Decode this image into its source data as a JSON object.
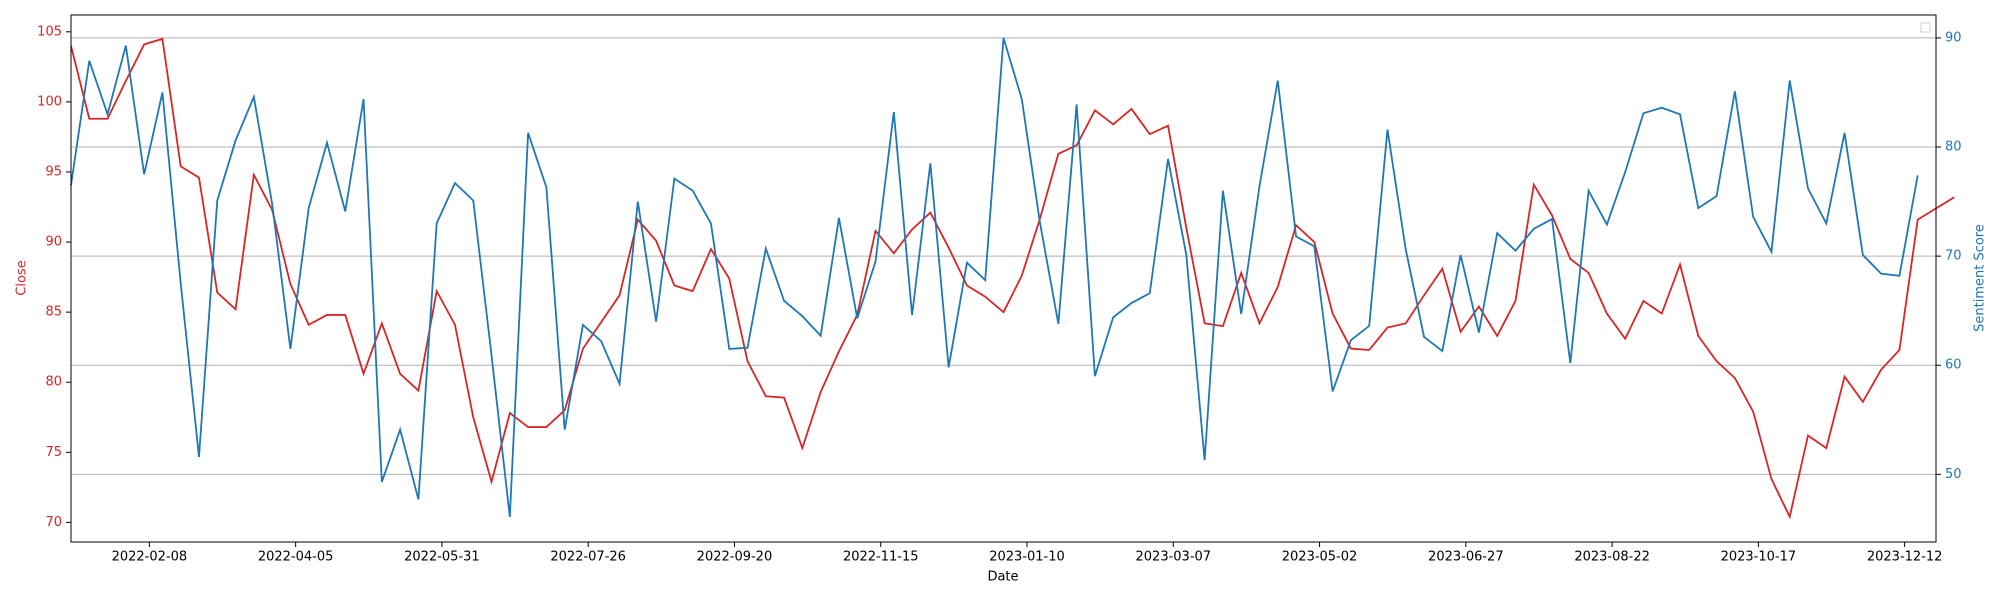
{
  "chart_data": {
    "type": "line",
    "x": [
      "2022-01-09",
      "2022-01-16",
      "2022-01-23",
      "2022-01-30",
      "2022-02-06",
      "2022-02-13",
      "2022-02-20",
      "2022-02-27",
      "2022-03-06",
      "2022-03-13",
      "2022-03-20",
      "2022-03-27",
      "2022-04-03",
      "2022-04-10",
      "2022-04-17",
      "2022-04-24",
      "2022-05-01",
      "2022-05-08",
      "2022-05-15",
      "2022-05-22",
      "2022-05-29",
      "2022-06-05",
      "2022-06-12",
      "2022-06-19",
      "2022-06-26",
      "2022-07-03",
      "2022-07-10",
      "2022-07-17",
      "2022-07-24",
      "2022-07-31",
      "2022-08-07",
      "2022-08-14",
      "2022-08-21",
      "2022-08-28",
      "2022-09-04",
      "2022-09-11",
      "2022-09-18",
      "2022-09-25",
      "2022-10-02",
      "2022-10-09",
      "2022-10-16",
      "2022-10-23",
      "2022-10-30",
      "2022-11-06",
      "2022-11-13",
      "2022-11-20",
      "2022-11-27",
      "2022-12-04",
      "2022-12-11",
      "2022-12-18",
      "2022-12-25",
      "2023-01-01",
      "2023-01-08",
      "2023-01-15",
      "2023-01-22",
      "2023-01-29",
      "2023-02-05",
      "2023-02-12",
      "2023-02-19",
      "2023-02-26",
      "2023-03-05",
      "2023-03-12",
      "2023-03-19",
      "2023-03-26",
      "2023-04-02",
      "2023-04-09",
      "2023-04-16",
      "2023-04-23",
      "2023-04-30",
      "2023-05-07",
      "2023-05-14",
      "2023-05-21",
      "2023-05-28",
      "2023-06-04",
      "2023-06-11",
      "2023-06-18",
      "2023-06-25",
      "2023-07-02",
      "2023-07-09",
      "2023-07-16",
      "2023-07-23",
      "2023-07-30",
      "2023-08-06",
      "2023-08-13",
      "2023-08-20",
      "2023-08-27",
      "2023-09-03",
      "2023-09-10",
      "2023-09-17",
      "2023-09-24",
      "2023-10-01",
      "2023-10-08",
      "2023-10-15",
      "2023-10-22",
      "2023-10-29",
      "2023-11-05",
      "2023-11-12",
      "2023-11-19",
      "2023-11-26",
      "2023-12-03",
      "2023-12-10",
      "2023-12-17",
      "2023-12-24",
      "2023-12-31"
    ],
    "series": [
      {
        "name": "Close",
        "color": "#d62728",
        "axis": "y",
        "values": [
          104.0,
          98.8,
          98.8,
          101.5,
          104.1,
          104.5,
          95.4,
          94.6,
          86.4,
          85.2,
          94.8,
          92.3,
          87.0,
          84.1,
          84.8,
          84.8,
          80.6,
          84.2,
          80.6,
          79.4,
          86.5,
          84.1,
          77.5,
          72.9,
          77.8,
          76.8,
          76.8,
          78.0,
          82.4,
          84.3,
          86.2,
          91.6,
          90.1,
          86.9,
          86.5,
          89.5,
          87.4,
          81.5,
          79.0,
          78.9,
          75.3,
          79.3,
          82.2,
          84.8,
          90.8,
          89.2,
          90.9,
          92.1,
          89.6,
          86.9,
          86.1,
          85.0,
          87.6,
          91.7,
          96.3,
          96.9,
          99.4,
          98.4,
          99.5,
          97.7,
          98.3,
          91.0,
          84.2,
          84.0,
          87.8,
          84.2,
          86.8,
          91.2,
          90.0,
          84.9,
          82.4,
          82.3,
          83.9,
          84.2,
          86.2,
          88.1,
          83.6,
          85.4,
          83.3,
          85.8,
          94.1,
          91.9,
          88.8,
          87.8,
          84.9,
          83.1,
          85.8,
          84.9,
          88.4,
          83.3,
          81.5,
          80.3,
          77.9,
          73.1,
          70.4,
          76.2,
          75.3,
          80.4,
          78.6,
          80.9,
          82.3,
          91.6,
          92.4,
          93.2
        ]
      },
      {
        "name": "Sentiment Score",
        "color": "#1f77b4",
        "axis": "y2",
        "values": [
          76.5,
          87.9,
          83.0,
          89.3,
          77.5,
          85.0,
          67.5,
          51.6,
          75.1,
          80.6,
          84.6,
          74.8,
          61.5,
          74.4,
          80.4,
          74.1,
          84.4,
          49.3,
          54.1,
          47.7,
          73.0,
          76.7,
          75.1,
          60.9,
          46.1,
          81.3,
          76.3,
          54.1,
          63.7,
          62.2,
          58.3,
          75.0,
          64.0,
          77.1,
          76.0,
          73.0,
          61.5,
          61.6,
          70.7,
          65.9,
          64.5,
          62.7,
          73.5,
          64.3,
          69.5,
          83.2,
          64.6,
          78.5,
          59.8,
          69.4,
          67.8,
          90.0,
          84.4,
          73.0,
          63.8,
          83.9,
          59.0,
          64.4,
          65.7,
          66.6,
          78.9,
          70.1,
          51.3,
          76.0,
          64.7,
          76.4,
          86.1,
          71.8,
          70.9,
          57.6,
          62.3,
          63.6,
          81.6,
          70.6,
          62.6,
          61.3,
          70.1,
          63.0,
          72.1,
          70.5,
          72.5,
          73.4,
          60.2,
          76.0,
          72.9,
          77.7,
          83.1,
          83.6,
          83.0,
          74.4,
          75.5,
          85.1,
          73.6,
          70.4,
          86.1,
          76.2,
          73.0,
          81.3,
          70.1,
          68.4,
          68.2,
          77.4,
          null,
          null
        ]
      }
    ],
    "xlabel": "Date",
    "ylabel": "Close",
    "y2label": "Sentiment Score",
    "xlim": [
      "2022-01-09",
      "2023-12-24"
    ],
    "xticks": [
      "2022-02-08",
      "2022-04-05",
      "2022-05-31",
      "2022-07-26",
      "2022-09-20",
      "2022-11-15",
      "2023-01-10",
      "2023-03-07",
      "2023-05-02",
      "2023-06-27",
      "2023-08-22",
      "2023-10-17",
      "2023-12-12"
    ],
    "ylim": [
      68.6,
      106.2
    ],
    "yticks": [
      70,
      75,
      80,
      85,
      90,
      95,
      100,
      105
    ],
    "y2lim": [
      43.8,
      92.1
    ],
    "y2ticks": [
      50,
      60,
      70,
      80,
      90
    ],
    "grid": "y2"
  }
}
